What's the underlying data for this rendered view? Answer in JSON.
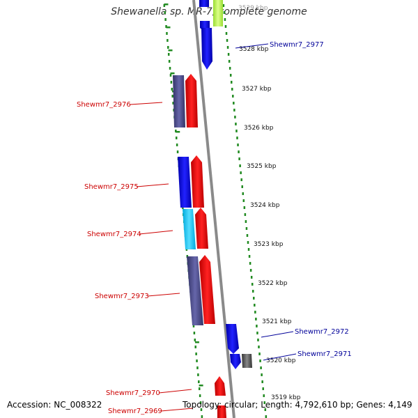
{
  "title": "Shewanella sp. MR-7, complete genome",
  "footer": {
    "accession": "Accession: NC_008322",
    "info": "Topology: circular; Length: 4,792,610 bp; Genes: 4,149"
  },
  "colors": {
    "forward_label": "#cc0000",
    "reverse_label": "#000099",
    "track": "#888888",
    "dots": "#228b22",
    "blue": "#0000ee",
    "red": "#ee0000",
    "navy": "#444488",
    "cyan": "#22ccee",
    "gray": "#555555",
    "lime": "#bbee55"
  },
  "ticks": [
    {
      "label": "3529 kbp"
    },
    {
      "label": "3528 kbp"
    },
    {
      "label": "3527 kbp"
    },
    {
      "label": "3526 kbp"
    },
    {
      "label": "3525 kbp"
    },
    {
      "label": "3524 kbp"
    },
    {
      "label": "3523 kbp"
    },
    {
      "label": "3522 kbp"
    },
    {
      "label": "3521 kbp"
    },
    {
      "label": "3520 kbp"
    },
    {
      "label": "3519 kbp"
    }
  ],
  "gene_labels": [
    {
      "text": "Shewmr7_2977",
      "strand": "reverse"
    },
    {
      "text": "Shewmr7_2976",
      "strand": "forward"
    },
    {
      "text": "Shewmr7_2975",
      "strand": "forward"
    },
    {
      "text": "Shewmr7_2974",
      "strand": "forward"
    },
    {
      "text": "Shewmr7_2973",
      "strand": "forward"
    },
    {
      "text": "Shewmr7_2972",
      "strand": "reverse"
    },
    {
      "text": "Shewmr7_2971",
      "strand": "reverse"
    },
    {
      "text": "Shewmr7_2970",
      "strand": "forward"
    },
    {
      "text": "Shewmr7_2969",
      "strand": "forward"
    }
  ]
}
